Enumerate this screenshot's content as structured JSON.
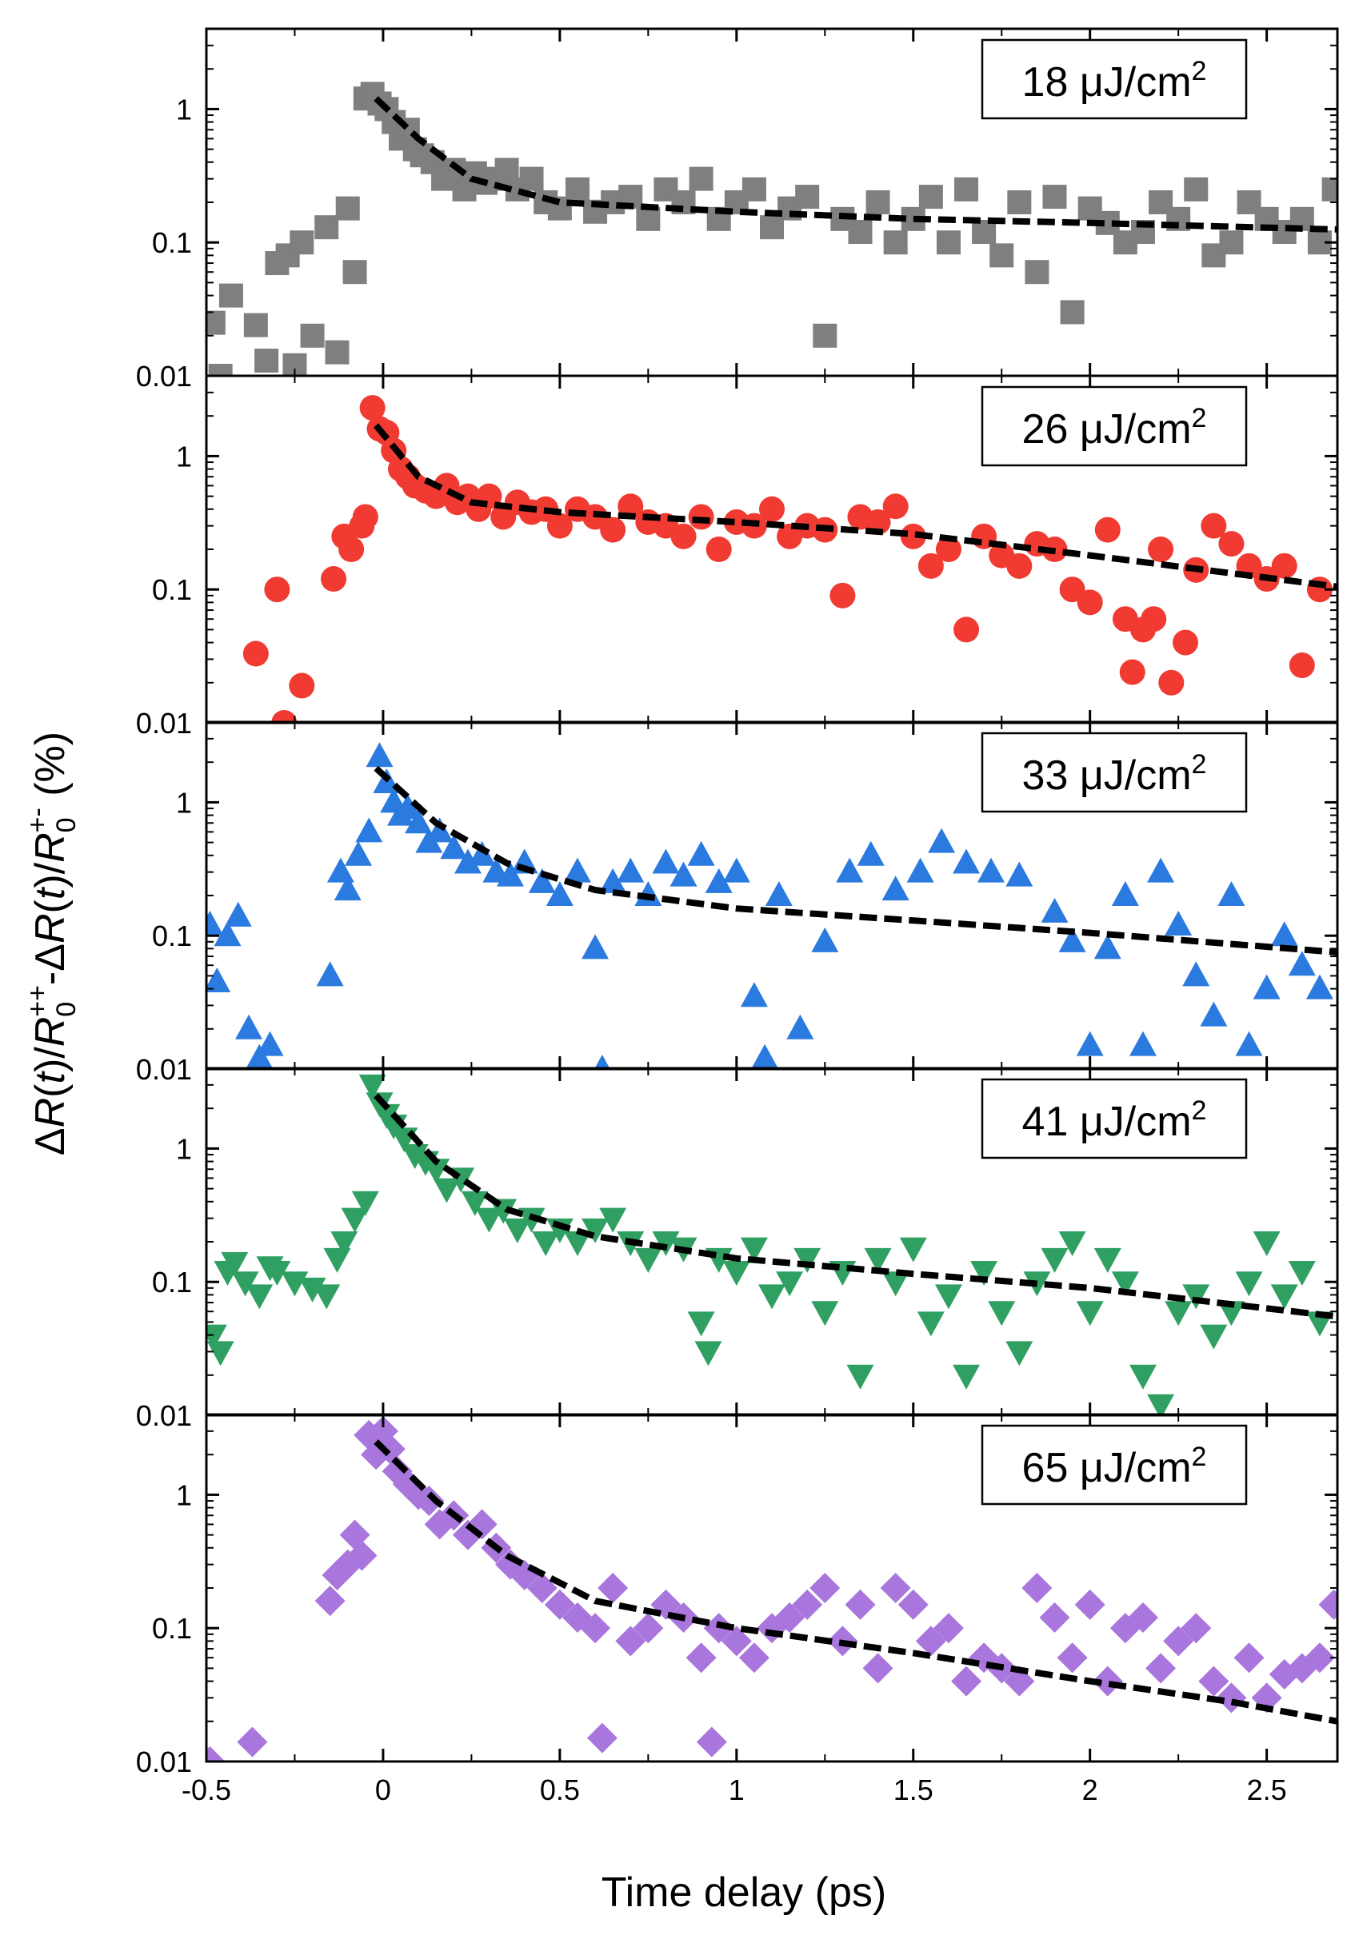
{
  "figure": {
    "xlabel": "Time delay (ps)",
    "ylabel": "ΔR(t)/R0++-ΔR(t)/R0+- (%)",
    "ylabel_parts": [
      "Δ",
      "R",
      "(",
      "t",
      ")/",
      "R",
      "0",
      "++",
      "-Δ",
      "R",
      "(",
      "t",
      ")/",
      "R",
      "0",
      "+-",
      " (%)"
    ]
  },
  "chart_data": [
    {
      "type": "scatter",
      "panel": "18",
      "legend": "18 μJ/cm2",
      "legend_parts": [
        "18 ",
        "μ",
        "J/cm",
        "2"
      ],
      "marker": "square",
      "color": "#7f7f7f",
      "xlim": [
        -0.5,
        2.7
      ],
      "ylim": [
        0.01,
        4
      ],
      "yscale": "log",
      "xticks": [
        "-0.5",
        "0",
        "0.5",
        "1",
        "1.5",
        "2",
        "2.5"
      ],
      "yticks": [
        "0.01",
        "0.1",
        "1"
      ],
      "fit": [
        [
          -0.02,
          1.2
        ],
        [
          0.1,
          0.6
        ],
        [
          0.25,
          0.3
        ],
        [
          0.5,
          0.2
        ],
        [
          1.0,
          0.17
        ],
        [
          1.5,
          0.15
        ],
        [
          2.0,
          0.14
        ],
        [
          2.7,
          0.125
        ]
      ],
      "x": [
        -0.48,
        -0.46,
        -0.43,
        -0.36,
        -0.33,
        -0.3,
        -0.27,
        -0.25,
        -0.23,
        -0.2,
        -0.16,
        -0.13,
        -0.1,
        -0.08,
        -0.05,
        -0.03,
        -0.01,
        0.01,
        0.03,
        0.05,
        0.07,
        0.09,
        0.11,
        0.14,
        0.17,
        0.2,
        0.23,
        0.26,
        0.29,
        0.32,
        0.35,
        0.38,
        0.42,
        0.46,
        0.5,
        0.55,
        0.6,
        0.65,
        0.7,
        0.75,
        0.8,
        0.85,
        0.9,
        0.95,
        1.0,
        1.05,
        1.1,
        1.15,
        1.2,
        1.25,
        1.3,
        1.35,
        1.4,
        1.45,
        1.5,
        1.55,
        1.6,
        1.65,
        1.7,
        1.75,
        1.8,
        1.85,
        1.9,
        1.95,
        2.0,
        2.05,
        2.1,
        2.15,
        2.2,
        2.25,
        2.3,
        2.35,
        2.4,
        2.45,
        2.5,
        2.55,
        2.6,
        2.65,
        2.69
      ],
      "y": [
        0.025,
        0.01,
        0.04,
        0.024,
        0.013,
        0.07,
        0.08,
        0.012,
        0.1,
        0.02,
        0.13,
        0.015,
        0.18,
        0.06,
        1.2,
        1.3,
        1.1,
        1.0,
        0.8,
        0.6,
        0.7,
        0.5,
        0.45,
        0.4,
        0.3,
        0.35,
        0.25,
        0.33,
        0.28,
        0.3,
        0.35,
        0.25,
        0.3,
        0.2,
        0.18,
        0.25,
        0.17,
        0.2,
        0.22,
        0.15,
        0.25,
        0.2,
        0.3,
        0.15,
        0.2,
        0.25,
        0.13,
        0.18,
        0.22,
        0.02,
        0.15,
        0.12,
        0.2,
        0.1,
        0.15,
        0.22,
        0.1,
        0.25,
        0.12,
        0.08,
        0.2,
        0.06,
        0.22,
        0.03,
        0.18,
        0.14,
        0.1,
        0.12,
        0.2,
        0.15,
        0.25,
        0.08,
        0.1,
        0.2,
        0.15,
        0.12,
        0.15,
        0.1,
        0.25
      ]
    },
    {
      "type": "scatter",
      "panel": "26",
      "legend": "26 μJ/cm2",
      "legend_parts": [
        "26 ",
        "μ",
        "J/cm",
        "2"
      ],
      "marker": "circle",
      "color": "#f03a32",
      "xlim": [
        -0.5,
        2.7
      ],
      "ylim": [
        0.01,
        4
      ],
      "yscale": "log",
      "xticks": [
        "-0.5",
        "0",
        "0.5",
        "1",
        "1.5",
        "2",
        "2.5"
      ],
      "yticks": [
        "0.01",
        "0.1",
        "1"
      ],
      "fit": [
        [
          -0.02,
          1.7
        ],
        [
          0.1,
          0.7
        ],
        [
          0.25,
          0.45
        ],
        [
          0.5,
          0.38
        ],
        [
          1.0,
          0.32
        ],
        [
          1.5,
          0.26
        ],
        [
          2.0,
          0.18
        ],
        [
          2.7,
          0.105
        ]
      ],
      "x": [
        -0.36,
        -0.3,
        -0.28,
        -0.23,
        -0.14,
        -0.11,
        -0.09,
        -0.06,
        -0.05,
        -0.03,
        -0.01,
        0.01,
        0.03,
        0.05,
        0.07,
        0.09,
        0.12,
        0.15,
        0.18,
        0.21,
        0.24,
        0.27,
        0.3,
        0.34,
        0.38,
        0.42,
        0.46,
        0.5,
        0.55,
        0.6,
        0.65,
        0.7,
        0.75,
        0.8,
        0.85,
        0.9,
        0.95,
        1.0,
        1.05,
        1.1,
        1.15,
        1.2,
        1.25,
        1.3,
        1.35,
        1.4,
        1.45,
        1.5,
        1.55,
        1.6,
        1.65,
        1.7,
        1.75,
        1.8,
        1.85,
        1.9,
        1.95,
        2.0,
        2.05,
        2.1,
        2.12,
        2.15,
        2.18,
        2.2,
        2.23,
        2.27,
        2.3,
        2.35,
        2.4,
        2.45,
        2.5,
        2.55,
        2.6,
        2.65
      ],
      "y": [
        0.033,
        0.1,
        0.01,
        0.019,
        0.12,
        0.25,
        0.2,
        0.3,
        0.35,
        2.3,
        1.6,
        1.5,
        1.1,
        0.8,
        0.7,
        0.6,
        0.55,
        0.5,
        0.6,
        0.45,
        0.5,
        0.4,
        0.5,
        0.35,
        0.45,
        0.38,
        0.4,
        0.3,
        0.4,
        0.35,
        0.28,
        0.42,
        0.32,
        0.3,
        0.25,
        0.35,
        0.2,
        0.32,
        0.3,
        0.4,
        0.25,
        0.3,
        0.28,
        0.09,
        0.35,
        0.32,
        0.42,
        0.25,
        0.15,
        0.2,
        0.05,
        0.25,
        0.18,
        0.15,
        0.22,
        0.2,
        0.1,
        0.08,
        0.28,
        0.06,
        0.024,
        0.05,
        0.06,
        0.2,
        0.02,
        0.04,
        0.14,
        0.3,
        0.22,
        0.15,
        0.12,
        0.15,
        0.027,
        0.1
      ]
    },
    {
      "type": "scatter",
      "panel": "33",
      "legend": "33 μJ/cm2",
      "legend_parts": [
        "33 ",
        "μ",
        "J/cm",
        "2"
      ],
      "marker": "triangle-up",
      "color": "#2a7ae0",
      "xlim": [
        -0.5,
        2.7
      ],
      "ylim": [
        0.01,
        4
      ],
      "yscale": "log",
      "xticks": [
        "-0.5",
        "0",
        "0.5",
        "1",
        "1.5",
        "2",
        "2.5"
      ],
      "yticks": [
        "0.01",
        "0.1",
        "1"
      ],
      "fit": [
        [
          -0.02,
          1.8
        ],
        [
          0.15,
          0.7
        ],
        [
          0.35,
          0.35
        ],
        [
          0.6,
          0.22
        ],
        [
          1.0,
          0.16
        ],
        [
          1.5,
          0.13
        ],
        [
          2.0,
          0.105
        ],
        [
          2.7,
          0.075
        ]
      ],
      "x": [
        -0.49,
        -0.47,
        -0.44,
        -0.41,
        -0.38,
        -0.35,
        -0.32,
        -0.15,
        -0.12,
        -0.1,
        -0.07,
        -0.04,
        -0.01,
        0.01,
        0.03,
        0.05,
        0.07,
        0.1,
        0.13,
        0.16,
        0.2,
        0.24,
        0.28,
        0.32,
        0.36,
        0.4,
        0.45,
        0.5,
        0.55,
        0.6,
        0.62,
        0.65,
        0.7,
        0.75,
        0.8,
        0.85,
        0.9,
        0.95,
        1.0,
        1.05,
        1.08,
        1.12,
        1.18,
        1.25,
        1.32,
        1.38,
        1.45,
        1.52,
        1.58,
        1.65,
        1.72,
        1.8,
        1.9,
        1.95,
        2.0,
        2.05,
        2.1,
        2.15,
        2.2,
        2.25,
        2.3,
        2.35,
        2.4,
        2.45,
        2.5,
        2.55,
        2.6,
        2.65
      ],
      "y": [
        0.12,
        0.045,
        0.1,
        0.14,
        0.02,
        0.012,
        0.015,
        0.05,
        0.3,
        0.22,
        0.4,
        0.6,
        2.2,
        1.4,
        1.0,
        0.8,
        0.9,
        0.7,
        0.5,
        0.6,
        0.45,
        0.35,
        0.4,
        0.3,
        0.28,
        0.35,
        0.25,
        0.2,
        0.3,
        0.08,
        0.01,
        0.25,
        0.3,
        0.2,
        0.35,
        0.28,
        0.4,
        0.25,
        0.3,
        0.035,
        0.012,
        0.2,
        0.02,
        0.09,
        0.3,
        0.4,
        0.22,
        0.3,
        0.5,
        0.35,
        0.3,
        0.28,
        0.15,
        0.09,
        0.015,
        0.08,
        0.2,
        0.015,
        0.3,
        0.12,
        0.05,
        0.025,
        0.2,
        0.015,
        0.04,
        0.1,
        0.06,
        0.04
      ]
    },
    {
      "type": "scatter",
      "panel": "41",
      "legend": "41 μJ/cm2",
      "legend_parts": [
        "41 ",
        "μ",
        "J/cm",
        "2"
      ],
      "marker": "triangle-down",
      "color": "#2fa062",
      "xlim": [
        -0.5,
        2.7
      ],
      "ylim": [
        0.01,
        4
      ],
      "yscale": "log",
      "xticks": [
        "-0.5",
        "0",
        "0.5",
        "1",
        "1.5",
        "2",
        "2.5"
      ],
      "yticks": [
        "0.01",
        "0.1",
        "1"
      ],
      "fit": [
        [
          -0.02,
          2.5
        ],
        [
          0.15,
          0.8
        ],
        [
          0.35,
          0.35
        ],
        [
          0.6,
          0.22
        ],
        [
          1.0,
          0.15
        ],
        [
          1.5,
          0.115
        ],
        [
          2.0,
          0.09
        ],
        [
          2.7,
          0.055
        ]
      ],
      "x": [
        -0.48,
        -0.46,
        -0.44,
        -0.42,
        -0.39,
        -0.35,
        -0.32,
        -0.3,
        -0.25,
        -0.2,
        -0.16,
        -0.13,
        -0.11,
        -0.08,
        -0.05,
        -0.03,
        -0.01,
        0.01,
        0.03,
        0.06,
        0.09,
        0.12,
        0.15,
        0.18,
        0.22,
        0.26,
        0.3,
        0.34,
        0.38,
        0.42,
        0.46,
        0.5,
        0.55,
        0.6,
        0.65,
        0.7,
        0.75,
        0.8,
        0.85,
        0.9,
        0.92,
        0.95,
        1.0,
        1.05,
        1.1,
        1.15,
        1.2,
        1.25,
        1.3,
        1.35,
        1.4,
        1.45,
        1.5,
        1.55,
        1.6,
        1.65,
        1.7,
        1.75,
        1.8,
        1.85,
        1.9,
        1.95,
        2.0,
        2.05,
        2.1,
        2.15,
        2.2,
        2.25,
        2.3,
        2.35,
        2.4,
        2.45,
        2.5,
        2.55,
        2.6,
        2.65
      ],
      "y": [
        0.04,
        0.03,
        0.12,
        0.14,
        0.1,
        0.08,
        0.13,
        0.12,
        0.1,
        0.09,
        0.08,
        0.15,
        0.2,
        0.3,
        0.4,
        3.0,
        2.2,
        1.8,
        1.5,
        1.2,
        0.9,
        0.8,
        0.7,
        0.5,
        0.6,
        0.4,
        0.3,
        0.35,
        0.25,
        0.3,
        0.2,
        0.25,
        0.2,
        0.25,
        0.3,
        0.2,
        0.15,
        0.2,
        0.18,
        0.05,
        0.03,
        0.15,
        0.12,
        0.18,
        0.08,
        0.1,
        0.15,
        0.06,
        0.12,
        0.02,
        0.15,
        0.1,
        0.18,
        0.05,
        0.08,
        0.02,
        0.12,
        0.06,
        0.03,
        0.1,
        0.15,
        0.2,
        0.06,
        0.15,
        0.1,
        0.02,
        0.012,
        0.06,
        0.08,
        0.04,
        0.06,
        0.1,
        0.2,
        0.08,
        0.12,
        0.05
      ]
    },
    {
      "type": "scatter",
      "panel": "65",
      "legend": "65 μJ/cm2",
      "legend_parts": [
        "65 ",
        "μ",
        "J/cm",
        "2"
      ],
      "marker": "diamond",
      "color": "#a876dc",
      "xlim": [
        -0.5,
        2.7
      ],
      "ylim": [
        0.01,
        4
      ],
      "yscale": "log",
      "xticks": [
        "-0.5",
        "0",
        "0.5",
        "1",
        "1.5",
        "2",
        "2.5"
      ],
      "yticks": [
        "0.01",
        "0.1",
        "1"
      ],
      "fit": [
        [
          -0.02,
          2.5
        ],
        [
          0.15,
          0.9
        ],
        [
          0.35,
          0.35
        ],
        [
          0.6,
          0.16
        ],
        [
          1.0,
          0.1
        ],
        [
          1.5,
          0.065
        ],
        [
          2.0,
          0.04
        ],
        [
          2.4,
          0.028
        ],
        [
          2.7,
          0.02
        ]
      ],
      "x": [
        -0.49,
        -0.37,
        -0.15,
        -0.13,
        -0.1,
        -0.08,
        -0.06,
        -0.04,
        -0.02,
        0.0,
        0.02,
        0.04,
        0.07,
        0.1,
        0.13,
        0.16,
        0.2,
        0.24,
        0.28,
        0.32,
        0.36,
        0.4,
        0.45,
        0.5,
        0.55,
        0.6,
        0.62,
        0.65,
        0.7,
        0.75,
        0.8,
        0.85,
        0.9,
        0.93,
        0.95,
        1.0,
        1.05,
        1.1,
        1.15,
        1.2,
        1.25,
        1.3,
        1.35,
        1.4,
        1.45,
        1.5,
        1.55,
        1.6,
        1.65,
        1.7,
        1.75,
        1.8,
        1.85,
        1.9,
        1.95,
        2.0,
        2.05,
        2.1,
        2.15,
        2.2,
        2.25,
        2.3,
        2.35,
        2.4,
        2.45,
        2.5,
        2.55,
        2.6,
        2.65,
        2.69
      ],
      "y": [
        0.01,
        0.014,
        0.16,
        0.25,
        0.3,
        0.5,
        0.35,
        2.8,
        2.0,
        3.0,
        2.2,
        1.5,
        1.2,
        1.0,
        0.9,
        0.6,
        0.7,
        0.5,
        0.6,
        0.4,
        0.3,
        0.25,
        0.2,
        0.15,
        0.12,
        0.1,
        0.015,
        0.2,
        0.08,
        0.1,
        0.15,
        0.12,
        0.06,
        0.014,
        0.1,
        0.08,
        0.06,
        0.1,
        0.12,
        0.15,
        0.2,
        0.08,
        0.15,
        0.05,
        0.2,
        0.15,
        0.08,
        0.1,
        0.04,
        0.06,
        0.05,
        0.04,
        0.2,
        0.12,
        0.06,
        0.15,
        0.04,
        0.1,
        0.12,
        0.05,
        0.08,
        0.1,
        0.04,
        0.03,
        0.06,
        0.03,
        0.045,
        0.05,
        0.06,
        0.15
      ]
    }
  ]
}
